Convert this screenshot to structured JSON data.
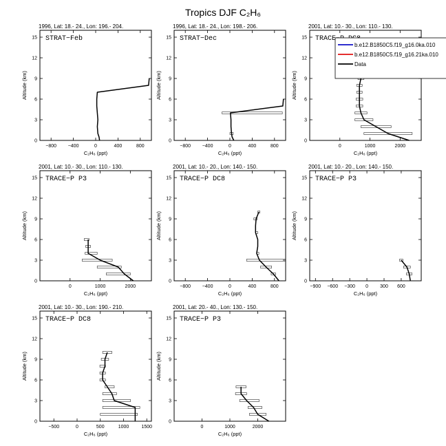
{
  "figure": {
    "title": "Tropics DJF C₂H₆"
  },
  "chart_data": [
    {
      "type": "line",
      "title": "1996, Lat: 18.- 24., Lon: 196.- 204.",
      "label": "STRAT−Feb",
      "xlabel": "C₂H₆ (ppt)",
      "ylabel": "Altitude (km)",
      "xlim": [
        -1000,
        1000
      ],
      "ylim": [
        0,
        16
      ],
      "xticks": [
        -800,
        -400,
        0,
        400,
        800
      ],
      "yticks": [
        0,
        3,
        6,
        9,
        12,
        15
      ],
      "series": [
        {
          "x": [
            70,
            60,
            40,
            30,
            40,
            30,
            20,
            20,
            30,
            950,
            960
          ],
          "y": [
            0,
            0.5,
            1,
            2,
            3,
            4,
            5,
            6,
            7,
            8,
            9
          ]
        }
      ],
      "errors": []
    },
    {
      "type": "line",
      "title": "1996, Lat: 18.- 24., Lon: 198.- 206.",
      "label": "STRAT−Dec",
      "xlabel": "C₂H₆ (ppt)",
      "ylabel": "Altitude (km)",
      "xlim": [
        -1000,
        1000
      ],
      "ylim": [
        0,
        16
      ],
      "xticks": [
        -800,
        -400,
        0,
        400,
        800
      ],
      "yticks": [
        0,
        3,
        6,
        9,
        12,
        15
      ],
      "series": [
        {
          "x": [
            70,
            40,
            30,
            20,
            20,
            10,
            950,
            960
          ],
          "y": [
            0,
            0.5,
            1,
            2,
            3,
            4,
            5,
            6
          ]
        }
      ],
      "errors": [
        {
          "y": 1,
          "x": 30,
          "xerr": 30
        },
        {
          "y": 4,
          "x": 400,
          "xerr": 540
        }
      ]
    },
    {
      "type": "line",
      "title": "2001, Lat: 10.- 30., Lon: 110.- 130.",
      "label": "TRACE−P DC8",
      "xlabel": "C₂H₆ (ppt)",
      "ylabel": "Altitude (km)",
      "xlim": [
        -1000,
        2700
      ],
      "ylim": [
        0,
        16
      ],
      "xticks": [
        0,
        1000,
        2000
      ],
      "yticks": [
        0,
        3,
        6,
        9,
        12,
        15
      ],
      "legend": [
        "b.e12.B1850C5.f19_g16.0ka.010",
        "b.e12.B1850C5.f19_g16.21ka.010",
        "Data"
      ],
      "legend_colors": [
        "#1010c8",
        "#e01010",
        "#000000"
      ],
      "legend_position": "top-right",
      "series": [
        {
          "x": [
            2300,
            1600,
            1200,
            800,
            700,
            650,
            650,
            650,
            650,
            700,
            700
          ],
          "y": [
            0,
            1,
            2,
            3,
            4,
            5,
            6,
            7,
            8,
            9,
            10
          ]
        }
      ],
      "errors": [
        {
          "y": 1,
          "x": 1600,
          "xerr": 800
        },
        {
          "y": 2,
          "x": 1200,
          "xerr": 500
        },
        {
          "y": 3,
          "x": 800,
          "xerr": 300
        },
        {
          "y": 4,
          "x": 700,
          "xerr": 200
        },
        {
          "y": 5,
          "x": 650,
          "xerr": 110
        },
        {
          "y": 6,
          "x": 650,
          "xerr": 110
        },
        {
          "y": 7,
          "x": 650,
          "xerr": 90
        },
        {
          "y": 8,
          "x": 650,
          "xerr": 90
        },
        {
          "y": 9,
          "x": 700,
          "xerr": 100
        },
        {
          "y": 10,
          "x": 700,
          "xerr": 100
        }
      ]
    },
    {
      "type": "line",
      "title": "2001, Lat: 10.- 30., Lon: 110.- 130.",
      "label": "TRACE−P P3",
      "xlabel": "C₂H₆ (ppt)",
      "ylabel": "Altitude (km)",
      "xlim": [
        -1000,
        2700
      ],
      "ylim": [
        0,
        16
      ],
      "xticks": [
        0,
        1000,
        2000
      ],
      "yticks": [
        0,
        3,
        6,
        9,
        12,
        15
      ],
      "series": [
        {
          "x": [
            2100,
            1800,
            1600,
            1000,
            600,
            600,
            600
          ],
          "y": [
            0,
            1,
            2,
            3,
            4,
            5,
            6
          ]
        }
      ],
      "errors": [
        {
          "y": 1,
          "x": 1600,
          "xerr": 400
        },
        {
          "y": 2,
          "x": 1300,
          "xerr": 400
        },
        {
          "y": 3,
          "x": 900,
          "xerr": 500
        },
        {
          "y": 4,
          "x": 700,
          "xerr": 200
        },
        {
          "y": 5,
          "x": 600,
          "xerr": 80
        },
        {
          "y": 6,
          "x": 550,
          "xerr": 80
        }
      ]
    },
    {
      "type": "line",
      "title": "2001, Lat: 10.- 20., Lon: 140.- 150.",
      "label": "TRACE−P DC8",
      "xlabel": "C₂H₆ (ppt)",
      "ylabel": "Altitude (km)",
      "xlim": [
        -1000,
        1000
      ],
      "ylim": [
        0,
        16
      ],
      "xticks": [
        -800,
        -400,
        0,
        400,
        800
      ],
      "yticks": [
        0,
        3,
        6,
        9,
        12,
        15
      ],
      "series": [
        {
          "x": [
            880,
            780,
            650,
            530,
            480,
            500,
            500,
            460,
            460,
            470,
            520
          ],
          "y": [
            0,
            1,
            2,
            3,
            4,
            5,
            6,
            7,
            8,
            9,
            10
          ]
        }
      ],
      "errors": [
        {
          "y": 1,
          "x": 780,
          "xerr": 40
        },
        {
          "y": 2,
          "x": 650,
          "xerr": 100
        },
        {
          "y": 3,
          "x": 650,
          "xerr": 350
        },
        {
          "y": 4,
          "x": 500,
          "xerr": 20
        },
        {
          "y": 7,
          "x": 480,
          "xerr": 20
        },
        {
          "y": 9,
          "x": 460,
          "xerr": 30
        },
        {
          "y": 10,
          "x": 520,
          "xerr": 20
        }
      ]
    },
    {
      "type": "line",
      "title": "2001, Lat: 10.- 20., Lon: 140.- 150.",
      "label": "TRACE−P P3",
      "xlabel": "C₂H₆ (ppt)",
      "ylabel": "Altitude (km)",
      "xlim": [
        -1000,
        950
      ],
      "ylim": [
        0,
        16
      ],
      "xticks": [
        -900,
        -600,
        -300,
        0,
        300,
        600
      ],
      "yticks": [
        0,
        3,
        6,
        9,
        12,
        15
      ],
      "series": [
        {
          "x": [
            760,
            740,
            700,
            600
          ],
          "y": [
            0,
            1,
            2,
            3
          ]
        }
      ],
      "errors": [
        {
          "y": 1,
          "x": 740,
          "xerr": 50
        },
        {
          "y": 2,
          "x": 700,
          "xerr": 60
        },
        {
          "y": 3,
          "x": 600,
          "xerr": 30
        }
      ]
    },
    {
      "type": "line",
      "title": "2001, Lat: 10.- 30., Lon: 190.- 210.",
      "label": "TRACE−P DC8",
      "xlabel": "C₂H₆ (ppt)",
      "ylabel": "Altitude (km)",
      "xlim": [
        -800,
        1600
      ],
      "ylim": [
        0,
        16
      ],
      "xticks": [
        -500,
        0,
        500,
        1000,
        1500
      ],
      "yticks": [
        0,
        3,
        6,
        9,
        12,
        15
      ],
      "series": [
        {
          "x": [
            1250,
            1250,
            1250,
            800,
            750,
            650,
            550,
            550,
            600,
            600,
            650
          ],
          "y": [
            0,
            1,
            2,
            3,
            4,
            5,
            6,
            7,
            8,
            9,
            10
          ]
        }
      ],
      "errors": [
        {
          "y": 1,
          "x": 900,
          "xerr": 400
        },
        {
          "y": 2,
          "x": 950,
          "xerr": 400
        },
        {
          "y": 3,
          "x": 850,
          "xerr": 300
        },
        {
          "y": 4,
          "x": 700,
          "xerr": 150
        },
        {
          "y": 5,
          "x": 700,
          "xerr": 100
        },
        {
          "y": 6,
          "x": 550,
          "xerr": 60
        },
        {
          "y": 7,
          "x": 550,
          "xerr": 60
        },
        {
          "y": 8,
          "x": 550,
          "xerr": 60
        },
        {
          "y": 9,
          "x": 600,
          "xerr": 80
        },
        {
          "y": 10,
          "x": 650,
          "xerr": 100
        }
      ]
    },
    {
      "type": "line",
      "title": "2001, Lat: 20.- 40., Lon: 130.- 150.",
      "label": "TRACE−P P3",
      "xlabel": "C₂H₆ (ppt)",
      "ylabel": "Altitude (km)",
      "xlim": [
        -1000,
        3000
      ],
      "ylim": [
        0,
        16
      ],
      "xticks": [
        0,
        1000,
        2000
      ],
      "yticks": [
        0,
        3,
        6,
        9,
        12,
        15
      ],
      "series": [
        {
          "x": [
            2400,
            2000,
            1850,
            1600,
            1400,
            1400
          ],
          "y": [
            0,
            1,
            2,
            3,
            4,
            5
          ]
        }
      ],
      "errors": [
        {
          "y": 1,
          "x": 2000,
          "xerr": 300
        },
        {
          "y": 2,
          "x": 1900,
          "xerr": 250
        },
        {
          "y": 3,
          "x": 1700,
          "xerr": 350
        },
        {
          "y": 4,
          "x": 1400,
          "xerr": 200
        },
        {
          "y": 5,
          "x": 1400,
          "xerr": 180
        }
      ]
    }
  ]
}
